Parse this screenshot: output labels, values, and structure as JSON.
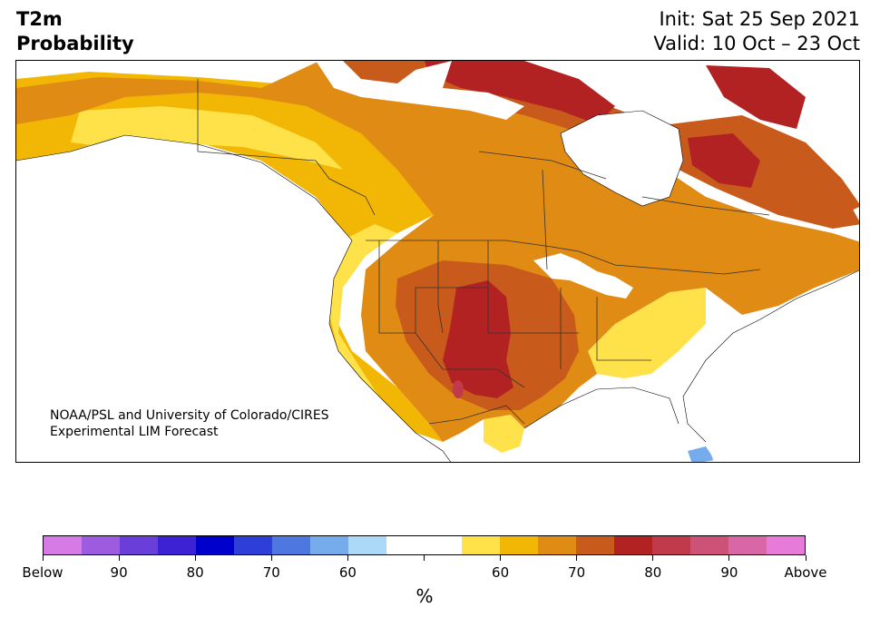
{
  "header": {
    "variable": "T2m",
    "product": "Probability",
    "init": "Init: Sat 25 Sep 2021",
    "valid": "Valid: 10 Oct – 23 Oct"
  },
  "credit": {
    "line1": "NOAA/PSL and University of Colorado/CIRES",
    "line2": "Experimental LIM Forecast"
  },
  "colorbar": {
    "units": "%",
    "colors": [
      "#d67be6",
      "#9d5ce0",
      "#6a3fd9",
      "#3c22d2",
      "#0000cc",
      "#2d3fd6",
      "#4f77e0",
      "#76abec",
      "#abd9f7",
      "#ffffff",
      "#ffffff",
      "#ffe14a",
      "#f2b705",
      "#e08b13",
      "#c85a1c",
      "#b32222",
      "#c03a4b",
      "#cc5278",
      "#d967a6",
      "#e67bd9"
    ],
    "tick_labels": [
      "Below",
      "90",
      "80",
      "70",
      "60",
      "",
      "60",
      "70",
      "80",
      "90",
      "Above"
    ]
  },
  "map_colors": {
    "land": "#ffffff",
    "c55": "#ffe14a",
    "c60": "#f2b705",
    "c65": "#e08b13",
    "c70": "#c85a1c",
    "c75": "#b32222",
    "c80": "#c03a4b",
    "blue": "#76abec"
  }
}
